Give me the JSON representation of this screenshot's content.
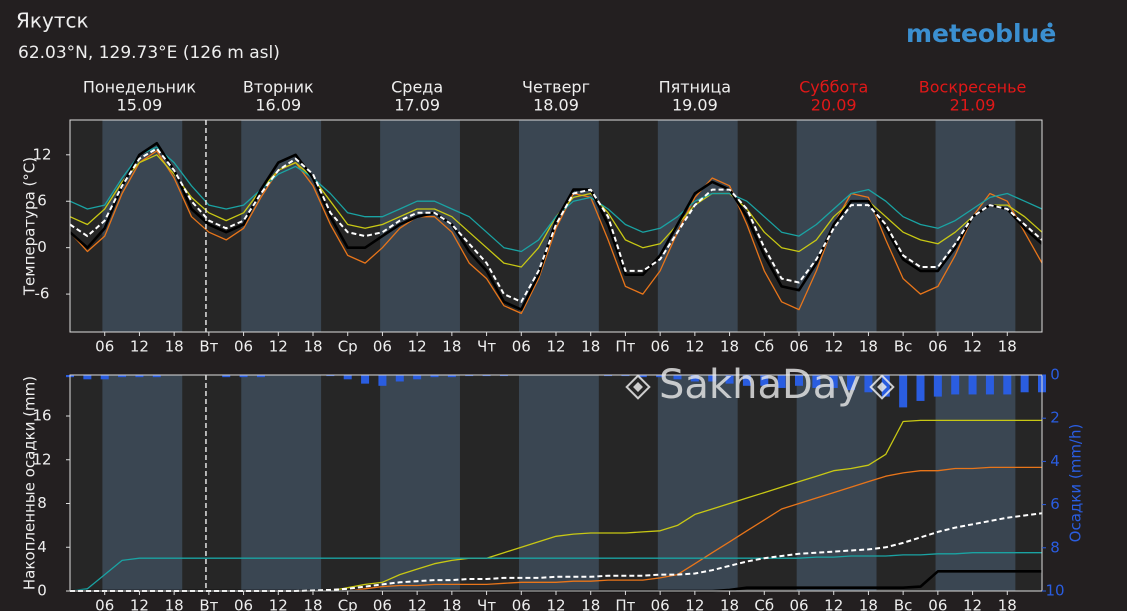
{
  "header": {
    "title": "Якутск",
    "subtitle": "62.03°N, 129.73°E (126 m asl)",
    "logo": "meteoblue",
    "watermark": "SakhaDay"
  },
  "days": [
    {
      "name": "Понедельник",
      "date": "15.09",
      "weekend": false
    },
    {
      "name": "Вторник",
      "date": "16.09",
      "weekend": false
    },
    {
      "name": "Среда",
      "date": "17.09",
      "weekend": false
    },
    {
      "name": "Четверг",
      "date": "18.09",
      "weekend": false
    },
    {
      "name": "Пятница",
      "date": "19.09",
      "weekend": false
    },
    {
      "name": "Суббота",
      "date": "20.09",
      "weekend": true
    },
    {
      "name": "Воскресенье",
      "date": "21.09",
      "weekend": true
    }
  ],
  "chart_data": [
    {
      "type": "line",
      "ylabel": "Температура (°C)",
      "x": [
        0,
        3,
        6,
        9,
        12,
        15,
        18,
        21,
        24,
        27,
        30,
        33,
        36,
        39,
        42,
        45,
        48,
        51,
        54,
        57,
        60,
        63,
        66,
        69,
        72,
        75,
        78,
        81,
        84,
        87,
        90,
        93,
        96,
        99,
        102,
        105,
        108,
        111,
        114,
        117,
        120,
        123,
        126,
        129,
        132,
        135,
        138,
        141,
        144,
        147,
        150,
        153,
        156,
        159,
        162,
        165,
        168
      ],
      "xlim": [
        0,
        168
      ],
      "xticks": [
        {
          "value": 6,
          "label": "06"
        },
        12,
        18,
        {
          "value": 24,
          "label": "Вт"
        },
        {
          "value": 30,
          "label": "06"
        },
        {
          "value": 36,
          "label": "12"
        },
        {
          "value": 42,
          "label": "18"
        },
        {
          "value": 48,
          "label": "Ср"
        },
        {
          "value": 54,
          "label": "06"
        },
        {
          "value": 60,
          "label": "12"
        },
        {
          "value": 66,
          "label": "18"
        },
        {
          "value": 72,
          "label": "Чт"
        },
        {
          "value": 78,
          "label": "06"
        },
        {
          "value": 84,
          "label": "12"
        },
        {
          "value": 90,
          "label": "18"
        },
        {
          "value": 96,
          "label": "Пт"
        },
        {
          "value": 102,
          "label": "06"
        },
        {
          "value": 108,
          "label": "12"
        },
        {
          "value": 114,
          "label": "18"
        },
        {
          "value": 120,
          "label": "Сб"
        },
        {
          "value": 126,
          "label": "06"
        },
        {
          "value": 132,
          "label": "12"
        },
        {
          "value": 138,
          "label": "18"
        },
        {
          "value": 144,
          "label": "Вс"
        },
        {
          "value": 150,
          "label": "06"
        },
        {
          "value": 156,
          "label": "12"
        },
        {
          "value": 162,
          "label": "18"
        }
      ],
      "ylim": [
        -10.9,
        16.5
      ],
      "yticks": [
        -6,
        0,
        6,
        12
      ],
      "current_time": 23.5,
      "daylight": [
        [
          5.6,
          19.4
        ],
        [
          29.6,
          43.4
        ],
        [
          53.6,
          67.4
        ],
        [
          77.6,
          91.4
        ],
        [
          101.6,
          115.4
        ],
        [
          125.6,
          139.4
        ],
        [
          149.6,
          163.4
        ]
      ],
      "series": [
        {
          "color": "#e8751a",
          "width": 1.3,
          "values": [
            2,
            -0.5,
            1.5,
            7,
            11,
            12.5,
            9,
            4,
            2,
            1,
            2.5,
            6.5,
            10,
            11,
            8,
            3,
            -1,
            -2,
            0,
            2.5,
            4,
            4,
            2,
            -2,
            -4,
            -7.5,
            -8.5,
            -4,
            2.5,
            7,
            6.5,
            1,
            -5,
            -6,
            -3,
            2,
            6.5,
            9,
            8,
            3,
            -3,
            -7,
            -8,
            -3,
            3,
            7,
            6.5,
            1,
            -4,
            -6,
            -5,
            -1,
            4,
            7,
            6,
            2,
            -2
          ]
        },
        {
          "color": "#c8c814",
          "width": 1.3,
          "values": [
            4,
            3,
            5,
            8.5,
            11,
            12,
            9.5,
            6.5,
            4.5,
            3.5,
            4.5,
            7.5,
            10,
            11,
            9,
            6,
            3,
            2.5,
            3,
            4,
            5,
            5,
            4,
            2,
            0,
            -2,
            -2.5,
            0,
            4,
            6.5,
            7,
            4.5,
            1,
            0,
            0.5,
            3,
            5.5,
            7,
            7,
            5,
            2,
            0,
            -0.5,
            1,
            4,
            6,
            6,
            4,
            2,
            1,
            0.5,
            2,
            4,
            5.5,
            5.5,
            4,
            2
          ]
        },
        {
          "color": "#1aa3a3",
          "width": 1.3,
          "values": [
            6,
            5,
            5.5,
            9,
            12,
            13,
            11,
            8,
            5.5,
            5,
            5.5,
            7.5,
            9.5,
            10.5,
            9,
            7,
            4.5,
            4,
            4,
            5,
            6,
            6,
            5,
            4,
            2,
            0,
            -0.5,
            1,
            4,
            6,
            6.5,
            5,
            3,
            2,
            2.5,
            4,
            6,
            7,
            7,
            6,
            4,
            2,
            1.5,
            3,
            5,
            7,
            7.5,
            6,
            4,
            3,
            2.5,
            3.5,
            5,
            6.5,
            7,
            6,
            5
          ]
        },
        {
          "color": "#000000",
          "width": 2.6,
          "values": [
            2,
            0,
            2.5,
            8,
            12,
            13.5,
            10,
            5,
            3,
            2,
            3,
            7.5,
            11,
            12,
            9,
            4,
            0,
            0,
            1.5,
            3,
            4,
            4.5,
            3,
            -0.5,
            -3,
            -7,
            -8,
            -3.5,
            3.5,
            7.5,
            7.5,
            3,
            -3.5,
            -3.5,
            -1,
            3,
            7,
            8.5,
            7.5,
            4,
            -1,
            -5,
            -5.5,
            -2,
            3,
            6,
            6,
            2.5,
            -1.5,
            -3,
            -3,
            0,
            4,
            5.5,
            5,
            2.5,
            0.5
          ]
        },
        {
          "color": "#ffffff",
          "width": 2,
          "dashed": true,
          "values": [
            3,
            1.5,
            3.5,
            8,
            11.5,
            12.8,
            10,
            6,
            3.5,
            2.5,
            3.5,
            7,
            10,
            11.5,
            9.5,
            4.5,
            2,
            1.5,
            2,
            3.5,
            4.5,
            4.5,
            3,
            0.5,
            -2,
            -6,
            -7,
            -3,
            3,
            7,
            7.5,
            4,
            -3,
            -3,
            -1.5,
            2,
            5.5,
            7.5,
            7.5,
            5,
            0,
            -4,
            -4.5,
            -1.5,
            2.5,
            5.5,
            5.5,
            3,
            -1,
            -2.5,
            -2.5,
            0.5,
            4,
            5.5,
            5,
            3,
            1
          ]
        }
      ]
    },
    {
      "type": "line",
      "ylabel": "Накопленные осадки (mm)",
      "y2label": "Осадки (mm/h)",
      "x": [
        0,
        3,
        6,
        9,
        12,
        15,
        18,
        21,
        24,
        27,
        30,
        33,
        36,
        39,
        42,
        45,
        48,
        51,
        54,
        57,
        60,
        63,
        66,
        69,
        72,
        75,
        78,
        81,
        84,
        87,
        90,
        93,
        96,
        99,
        102,
        105,
        108,
        111,
        114,
        117,
        120,
        123,
        126,
        129,
        132,
        135,
        138,
        141,
        144,
        147,
        150,
        153,
        156,
        159,
        162,
        165,
        168
      ],
      "xlim": [
        0,
        168
      ],
      "xticks": [
        {
          "value": 6,
          "label": "06"
        },
        12,
        18,
        {
          "value": 24,
          "label": "Вт"
        },
        {
          "value": 30,
          "label": "06"
        },
        {
          "value": 36,
          "label": "12"
        },
        {
          "value": 42,
          "label": "18"
        },
        {
          "value": 48,
          "label": "Ср"
        },
        {
          "value": 54,
          "label": "06"
        },
        {
          "value": 60,
          "label": "12"
        },
        {
          "value": 66,
          "label": "18"
        },
        {
          "value": 72,
          "label": "Чт"
        },
        {
          "value": 78,
          "label": "06"
        },
        {
          "value": 84,
          "label": "12"
        },
        {
          "value": 90,
          "label": "18"
        },
        {
          "value": 96,
          "label": "Пт"
        },
        {
          "value": 102,
          "label": "06"
        },
        {
          "value": 108,
          "label": "12"
        },
        {
          "value": 114,
          "label": "18"
        },
        {
          "value": 120,
          "label": "Сб"
        },
        {
          "value": 126,
          "label": "06"
        },
        {
          "value": 132,
          "label": "12"
        },
        {
          "value": 138,
          "label": "18"
        },
        {
          "value": 144,
          "label": "Вс"
        },
        {
          "value": 150,
          "label": "06"
        },
        {
          "value": 156,
          "label": "12"
        },
        {
          "value": 162,
          "label": "18"
        }
      ],
      "ylim": [
        0,
        19.75
      ],
      "yticks": [
        0,
        4,
        8,
        12,
        16
      ],
      "y2lim": [
        10,
        0
      ],
      "y2ticks": [
        0,
        2,
        4,
        6,
        8,
        10
      ],
      "y2color": "#2a5de0",
      "current_time": 23.5,
      "daylight": [
        [
          5.6,
          19.4
        ],
        [
          29.6,
          43.4
        ],
        [
          53.6,
          67.4
        ],
        [
          77.6,
          91.4
        ],
        [
          101.6,
          115.4
        ],
        [
          125.6,
          139.4
        ],
        [
          149.6,
          163.4
        ]
      ],
      "series": [
        {
          "type": "bar",
          "axis": "y2",
          "color": "#2a5de0",
          "values": [
            0.1,
            0.2,
            0.2,
            0.1,
            0.1,
            0.1,
            0,
            0,
            0,
            0.1,
            0.1,
            0.1,
            0,
            0,
            0,
            0.05,
            0.2,
            0.4,
            0.5,
            0.3,
            0.2,
            0.1,
            0.1,
            0.05,
            0.05,
            0.05,
            0,
            0,
            0,
            0,
            0,
            0.05,
            0.05,
            0.1,
            0.1,
            0.2,
            0.3,
            0.3,
            0.4,
            0.5,
            0.5,
            0.6,
            0.5,
            0.6,
            0.6,
            0.7,
            0.8,
            1,
            1.5,
            1.2,
            1,
            0.9,
            0.9,
            0.9,
            0.9,
            0.8,
            0.8
          ]
        },
        {
          "color": "#e8751a",
          "width": 1.3,
          "values": [
            0,
            0,
            0,
            0,
            0,
            0,
            0,
            0,
            0,
            0,
            0,
            0,
            0,
            0,
            0,
            0,
            0,
            0.2,
            0.4,
            0.5,
            0.5,
            0.6,
            0.6,
            0.6,
            0.6,
            0.7,
            0.8,
            0.8,
            0.8,
            0.9,
            0.9,
            1,
            1,
            1,
            1.2,
            1.5,
            2.5,
            3.5,
            4.5,
            5.5,
            6.5,
            7.5,
            8,
            8.5,
            9,
            9.5,
            10,
            10.5,
            10.8,
            11,
            11,
            11.2,
            11.2,
            11.3,
            11.3,
            11.3,
            11.3
          ]
        },
        {
          "color": "#c8c814",
          "width": 1.3,
          "values": [
            0,
            0,
            0,
            0,
            0,
            0,
            0,
            0,
            0,
            0,
            0,
            0,
            0,
            0,
            0,
            0,
            0.3,
            0.6,
            0.8,
            1.5,
            2,
            2.5,
            2.8,
            3,
            3,
            3.5,
            4,
            4.5,
            5,
            5.2,
            5.3,
            5.3,
            5.3,
            5.4,
            5.5,
            6,
            7,
            7.5,
            8,
            8.5,
            9,
            9.5,
            10,
            10.5,
            11,
            11.2,
            11.5,
            12.5,
            15.5,
            15.6,
            15.6,
            15.6,
            15.6,
            15.6,
            15.6,
            15.6,
            15.6
          ]
        },
        {
          "color": "#1aa3a3",
          "width": 1.3,
          "values": [
            0,
            0.2,
            1.5,
            2.8,
            3,
            3,
            3,
            3,
            3,
            3,
            3,
            3,
            3,
            3,
            3,
            3,
            3,
            3,
            3,
            3,
            3,
            3,
            3,
            3,
            3,
            3,
            3,
            3,
            3,
            3,
            3,
            3,
            3,
            3,
            3,
            3,
            3,
            3,
            3,
            3,
            3,
            3,
            3,
            3.1,
            3.1,
            3.2,
            3.2,
            3.2,
            3.3,
            3.3,
            3.4,
            3.4,
            3.5,
            3.5,
            3.5,
            3.5,
            3.5
          ]
        },
        {
          "color": "#000000",
          "width": 2.6,
          "values": [
            0,
            0,
            0,
            0,
            0,
            0,
            0,
            0,
            0,
            0,
            0,
            0,
            0,
            0,
            0,
            0,
            0,
            0,
            0,
            0,
            0,
            0,
            0,
            0,
            0,
            0,
            0,
            0,
            0,
            0,
            0,
            0,
            0,
            0,
            0,
            0,
            0,
            0,
            0.1,
            0.3,
            0.3,
            0.3,
            0.3,
            0.3,
            0.3,
            0.3,
            0.3,
            0.3,
            0.3,
            0.4,
            1.8,
            1.8,
            1.8,
            1.8,
            1.8,
            1.8,
            1.8
          ]
        },
        {
          "color": "#ffffff",
          "width": 2,
          "dashed": true,
          "values": [
            0,
            0,
            0,
            0,
            0,
            0,
            0,
            0,
            0,
            0,
            0,
            0,
            0,
            0,
            0.05,
            0.1,
            0.2,
            0.4,
            0.6,
            0.8,
            0.9,
            1,
            1,
            1.1,
            1.1,
            1.2,
            1.2,
            1.2,
            1.3,
            1.3,
            1.3,
            1.4,
            1.4,
            1.4,
            1.5,
            1.5,
            1.6,
            1.9,
            2.3,
            2.7,
            3,
            3.2,
            3.4,
            3.5,
            3.6,
            3.7,
            3.8,
            4,
            4.4,
            4.9,
            5.4,
            5.8,
            6.1,
            6.4,
            6.7,
            6.9,
            7.1
          ]
        }
      ]
    }
  ]
}
